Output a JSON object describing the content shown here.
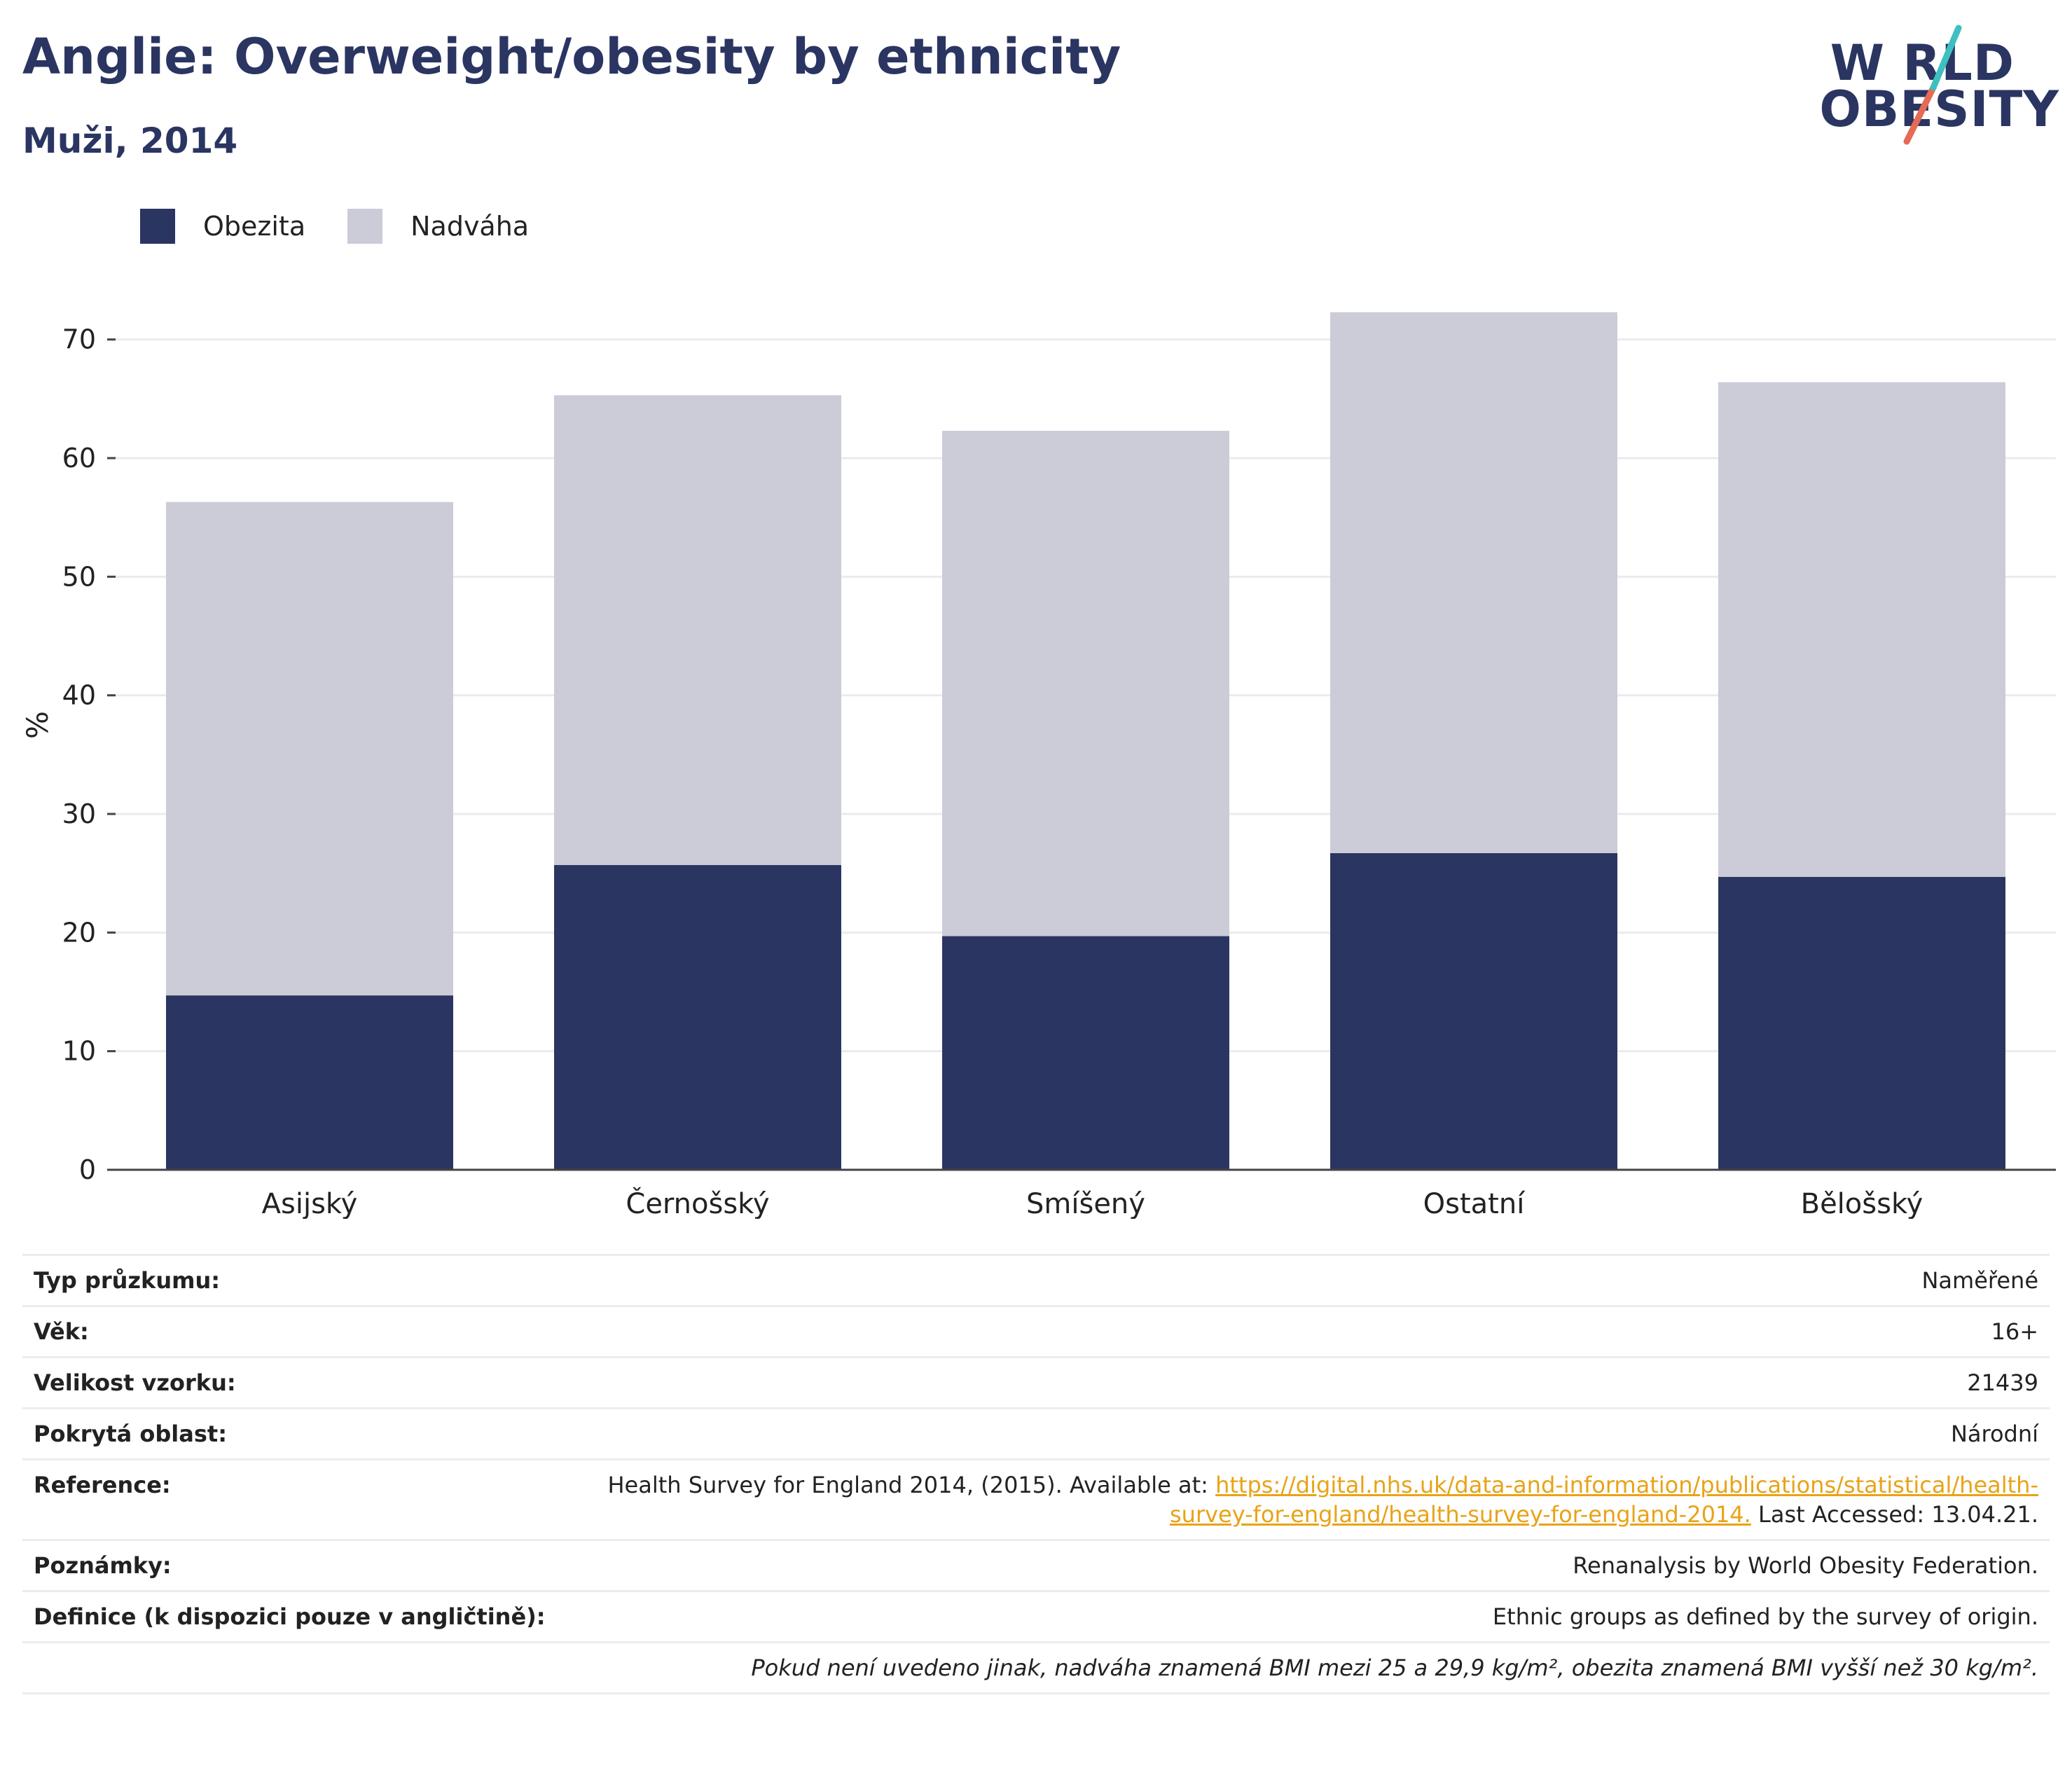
{
  "header": {
    "title": "Anglie: Overweight/obesity by ethnicity",
    "subtitle": "Muži, 2014"
  },
  "logo": {
    "line1": "W RLD",
    "line2": "OBESITY",
    "colors": {
      "text": "#2b3562",
      "accent_teal": "#3fbfbf",
      "accent_coral": "#e56b55"
    }
  },
  "legend": {
    "items": [
      {
        "label": "Obezita",
        "color": "#2b3562"
      },
      {
        "label": "Nadváha",
        "color": "#cbccd8"
      }
    ]
  },
  "chart_data": {
    "type": "bar",
    "stacked": true,
    "title": "",
    "xlabel": "",
    "ylabel": "%",
    "ylim": [
      0,
      75
    ],
    "yticks": [
      0,
      10,
      20,
      30,
      40,
      50,
      60,
      70
    ],
    "grid": true,
    "legend_position": "top-left",
    "categories": [
      "Asijský",
      "Černošský",
      "Smíšený",
      "Ostatní",
      "Bělošský"
    ],
    "series": [
      {
        "name": "Obezita",
        "color": "#2b3562",
        "values": [
          14.7,
          25.7,
          19.7,
          26.7,
          24.7
        ]
      },
      {
        "name": "Nadváha",
        "color": "#cbccd8",
        "values": [
          41.6,
          39.6,
          42.6,
          45.6,
          41.7
        ]
      }
    ]
  },
  "info": {
    "rows": [
      {
        "label": "Typ průzkumu:",
        "value": "Naměřené"
      },
      {
        "label": "Věk:",
        "value": "16+"
      },
      {
        "label": "Velikost vzorku:",
        "value": "21439"
      },
      {
        "label": "Pokrytá oblast:",
        "value": "Národní"
      },
      {
        "label": "Reference:",
        "value": ""
      },
      {
        "label": "Poznámky:",
        "value": "Renanalysis by World Obesity Federation."
      },
      {
        "label": "Definice (k dispozici pouze v angličtině):",
        "value": "Ethnic groups as defined by the survey of origin."
      }
    ],
    "reference": {
      "before": "Health Survey for England 2014, (2015). Available at: ",
      "link": "https://digital.nhs.uk/data-and-information/publications/statistical/health-survey-for-england/health-survey-for-england-2014.",
      "after": " Last Accessed: 13.04.21."
    },
    "footnote": "Pokud není uvedeno jinak, nadváha znamená BMI mezi 25 a 29,9 kg/m², obezita znamená BMI vyšší než 30 kg/m²."
  }
}
